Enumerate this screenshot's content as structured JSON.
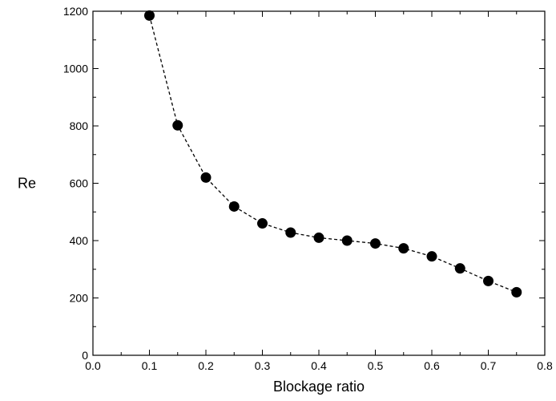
{
  "chart_data": {
    "type": "scatter",
    "xlabel": "Blockage ratio",
    "ylabel": "Re",
    "xlim": [
      0.0,
      0.8
    ],
    "ylim": [
      0,
      1200
    ],
    "x_ticks": [
      0.0,
      0.1,
      0.2,
      0.3,
      0.4,
      0.5,
      0.6,
      0.7,
      0.8
    ],
    "x_tick_labels": [
      "0.0",
      "0.1",
      "0.2",
      "0.3",
      "0.4",
      "0.5",
      "0.6",
      "0.7",
      "0.8"
    ],
    "y_ticks": [
      0,
      200,
      400,
      600,
      800,
      1000,
      1200
    ],
    "y_tick_labels": [
      "0",
      "200",
      "400",
      "600",
      "800",
      "1000",
      "1200"
    ],
    "grid": false,
    "line_style": "dashed",
    "marker": "filled-circle",
    "color": "#000000",
    "series": [
      {
        "x": [
          0.1,
          0.15,
          0.2,
          0.25,
          0.3,
          0.35,
          0.4,
          0.45,
          0.5,
          0.55,
          0.6,
          0.65,
          0.7,
          0.75
        ],
        "y": [
          1185,
          802,
          620,
          519,
          460,
          428,
          410,
          400,
          390,
          373,
          345,
          303,
          259,
          220
        ]
      }
    ]
  }
}
